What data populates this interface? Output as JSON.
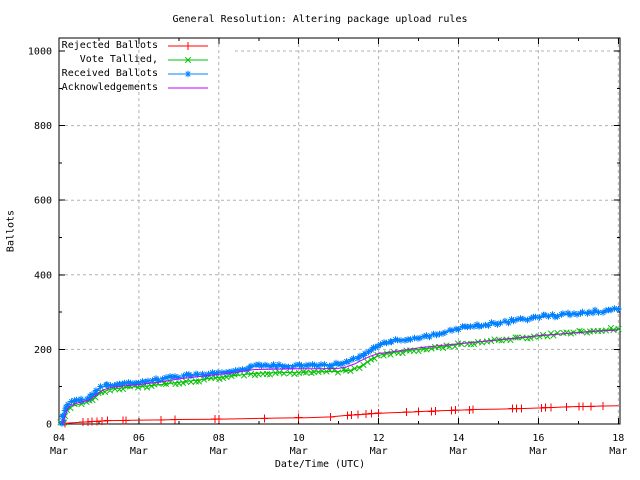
{
  "chart_data": {
    "type": "line",
    "title": "General Resolution: Altering package upload rules",
    "xlabel": "Date/Time (UTC)",
    "ylabel": "Ballots",
    "background": "#ffffff",
    "border_color": "#000000",
    "grid": {
      "on": true,
      "color": "#b2b2b2",
      "dash": "3,3"
    },
    "legend": {
      "position": "top-left"
    },
    "x_axis": {
      "range_days": [
        4,
        18
      ],
      "ticks": [
        {
          "day": 4,
          "label": "04",
          "sub": "Mar"
        },
        {
          "day": 6,
          "label": "06",
          "sub": "Mar"
        },
        {
          "day": 8,
          "label": "08",
          "sub": "Mar"
        },
        {
          "day": 10,
          "label": "10",
          "sub": "Mar"
        },
        {
          "day": 12,
          "label": "12",
          "sub": "Mar"
        },
        {
          "day": 14,
          "label": "14",
          "sub": "Mar"
        },
        {
          "day": 16,
          "label": "16",
          "sub": "Mar"
        },
        {
          "day": 18,
          "label": "18",
          "sub": "Mar"
        }
      ],
      "minor_days": [
        5,
        7,
        9,
        11,
        13,
        15,
        17
      ]
    },
    "y_axis": {
      "range": [
        0,
        1000
      ],
      "ticks": [
        0,
        200,
        400,
        600,
        800,
        1000
      ],
      "minor": [
        100,
        300,
        500,
        700,
        900
      ]
    },
    "series": [
      {
        "name": "Rejected Ballots",
        "color": "#ff0000",
        "marker": "plus",
        "style": "linespoints",
        "line": [
          [
            4.08,
            0
          ],
          [
            4.15,
            2
          ],
          [
            4.6,
            5
          ],
          [
            4.85,
            7
          ],
          [
            5.1,
            8
          ],
          [
            5.3,
            9
          ],
          [
            5.8,
            10
          ],
          [
            6.6,
            11
          ],
          [
            7.0,
            12
          ],
          [
            7.9,
            13
          ],
          [
            9.0,
            15
          ],
          [
            9.6,
            16
          ],
          [
            10.2,
            17
          ],
          [
            10.8,
            19
          ],
          [
            11.2,
            23
          ],
          [
            11.5,
            25
          ],
          [
            11.9,
            28
          ],
          [
            12.3,
            30
          ],
          [
            12.8,
            32
          ],
          [
            13.2,
            34
          ],
          [
            13.6,
            36
          ],
          [
            14.0,
            37
          ],
          [
            14.35,
            39
          ],
          [
            15.0,
            40
          ],
          [
            15.45,
            41
          ],
          [
            16.0,
            43
          ],
          [
            16.3,
            44
          ],
          [
            16.75,
            46
          ],
          [
            17.1,
            47
          ],
          [
            17.5,
            48
          ],
          [
            18.0,
            49
          ]
        ],
        "markers": [
          [
            4.15,
            2
          ],
          [
            4.6,
            5
          ],
          [
            4.72,
            6
          ],
          [
            4.82,
            7
          ],
          [
            4.95,
            7
          ],
          [
            5.08,
            8
          ],
          [
            5.22,
            9
          ],
          [
            5.6,
            10
          ],
          [
            5.68,
            10
          ],
          [
            6.55,
            11
          ],
          [
            6.9,
            12
          ],
          [
            7.9,
            13
          ],
          [
            8.0,
            13
          ],
          [
            9.15,
            15
          ],
          [
            10.0,
            17
          ],
          [
            10.8,
            19
          ],
          [
            11.22,
            23
          ],
          [
            11.32,
            24
          ],
          [
            11.48,
            25
          ],
          [
            11.68,
            27
          ],
          [
            11.82,
            28
          ],
          [
            12.0,
            29
          ],
          [
            12.7,
            32
          ],
          [
            13.0,
            33
          ],
          [
            13.32,
            34
          ],
          [
            13.42,
            35
          ],
          [
            13.82,
            36
          ],
          [
            13.92,
            37
          ],
          [
            14.28,
            38
          ],
          [
            14.36,
            39
          ],
          [
            15.35,
            41
          ],
          [
            15.45,
            41
          ],
          [
            15.58,
            42
          ],
          [
            16.08,
            43
          ],
          [
            16.18,
            44
          ],
          [
            16.32,
            44
          ],
          [
            16.7,
            46
          ],
          [
            17.02,
            47
          ],
          [
            17.12,
            47
          ],
          [
            17.32,
            47
          ],
          [
            17.62,
            48
          ]
        ]
      },
      {
        "name": "Vote Tallied,",
        "color": "#00c000",
        "marker": "cross",
        "style": "linespoints",
        "line": [
          [
            4.07,
            0
          ],
          [
            4.1,
            6
          ],
          [
            4.15,
            20
          ],
          [
            4.2,
            35
          ],
          [
            4.28,
            45
          ],
          [
            4.4,
            50
          ],
          [
            4.55,
            54
          ],
          [
            4.7,
            58
          ],
          [
            4.85,
            68
          ],
          [
            5.0,
            80
          ],
          [
            5.15,
            88
          ],
          [
            5.3,
            93
          ],
          [
            5.5,
            96
          ],
          [
            5.8,
            99
          ],
          [
            6.0,
            100
          ],
          [
            6.5,
            105
          ],
          [
            7.0,
            112
          ],
          [
            7.5,
            118
          ],
          [
            8.0,
            125
          ],
          [
            8.5,
            131
          ],
          [
            8.9,
            136
          ],
          [
            9.3,
            137
          ],
          [
            10.0,
            139
          ],
          [
            10.5,
            140
          ],
          [
            11.0,
            141
          ],
          [
            11.3,
            144
          ],
          [
            11.5,
            152
          ],
          [
            11.7,
            165
          ],
          [
            11.9,
            178
          ],
          [
            12.1,
            187
          ],
          [
            12.4,
            192
          ],
          [
            12.7,
            196
          ],
          [
            13.0,
            200
          ],
          [
            13.4,
            204
          ],
          [
            13.8,
            210
          ],
          [
            14.1,
            216
          ],
          [
            14.5,
            220
          ],
          [
            15.0,
            225
          ],
          [
            15.5,
            230
          ],
          [
            16.0,
            236
          ],
          [
            16.5,
            241
          ],
          [
            17.0,
            246
          ],
          [
            17.5,
            250
          ],
          [
            18.0,
            255
          ]
        ]
      },
      {
        "name": "Received Ballots",
        "color": "#0080ff",
        "marker": "asterisk",
        "style": "linespoints",
        "line": [
          [
            4.05,
            0
          ],
          [
            4.08,
            8
          ],
          [
            4.12,
            25
          ],
          [
            4.17,
            42
          ],
          [
            4.22,
            52
          ],
          [
            4.3,
            58
          ],
          [
            4.45,
            62
          ],
          [
            4.6,
            65
          ],
          [
            4.75,
            70
          ],
          [
            4.85,
            80
          ],
          [
            4.95,
            90
          ],
          [
            5.05,
            97
          ],
          [
            5.15,
            102
          ],
          [
            5.3,
            106
          ],
          [
            5.5,
            108
          ],
          [
            5.8,
            110
          ],
          [
            6.0,
            112
          ],
          [
            6.5,
            120
          ],
          [
            7.0,
            128
          ],
          [
            7.5,
            132
          ],
          [
            8.0,
            138
          ],
          [
            8.5,
            146
          ],
          [
            8.9,
            155
          ],
          [
            9.3,
            156
          ],
          [
            10.0,
            157
          ],
          [
            10.5,
            158
          ],
          [
            11.0,
            159
          ],
          [
            11.2,
            164
          ],
          [
            11.4,
            175
          ],
          [
            11.6,
            188
          ],
          [
            11.8,
            200
          ],
          [
            12.0,
            212
          ],
          [
            12.2,
            218
          ],
          [
            12.5,
            224
          ],
          [
            12.8,
            230
          ],
          [
            13.2,
            236
          ],
          [
            13.6,
            245
          ],
          [
            14.0,
            257
          ],
          [
            14.3,
            261
          ],
          [
            14.6,
            265
          ],
          [
            15.0,
            271
          ],
          [
            15.4,
            277
          ],
          [
            15.8,
            284
          ],
          [
            16.1,
            288
          ],
          [
            16.4,
            291
          ],
          [
            16.8,
            295
          ],
          [
            17.2,
            299
          ],
          [
            17.6,
            303
          ],
          [
            18.0,
            308
          ]
        ]
      },
      {
        "name": "Acknowledgements",
        "color": "#c000ff",
        "marker": "none",
        "style": "lines",
        "line": [
          [
            4.07,
            0
          ],
          [
            4.1,
            5
          ],
          [
            4.16,
            24
          ],
          [
            4.22,
            42
          ],
          [
            4.3,
            50
          ],
          [
            4.45,
            56
          ],
          [
            4.6,
            60
          ],
          [
            4.75,
            64
          ],
          [
            4.9,
            76
          ],
          [
            5.05,
            88
          ],
          [
            5.2,
            95
          ],
          [
            5.4,
            100
          ],
          [
            5.7,
            103
          ],
          [
            6.0,
            106
          ],
          [
            6.5,
            112
          ],
          [
            7.0,
            121
          ],
          [
            7.5,
            127
          ],
          [
            8.0,
            133
          ],
          [
            8.5,
            140
          ],
          [
            8.9,
            146
          ],
          [
            9.3,
            147
          ],
          [
            10.0,
            148
          ],
          [
            10.5,
            148
          ],
          [
            11.0,
            149
          ],
          [
            11.2,
            153
          ],
          [
            11.4,
            161
          ],
          [
            11.6,
            172
          ],
          [
            11.8,
            182
          ],
          [
            12.0,
            189
          ],
          [
            12.3,
            193
          ],
          [
            12.7,
            199
          ],
          [
            13.0,
            204
          ],
          [
            13.5,
            210
          ],
          [
            14.0,
            215
          ],
          [
            14.5,
            220
          ],
          [
            15.0,
            226
          ],
          [
            15.5,
            231
          ],
          [
            16.0,
            237
          ],
          [
            16.5,
            241
          ],
          [
            17.0,
            245
          ],
          [
            17.5,
            249
          ],
          [
            18.0,
            252
          ]
        ]
      }
    ]
  }
}
